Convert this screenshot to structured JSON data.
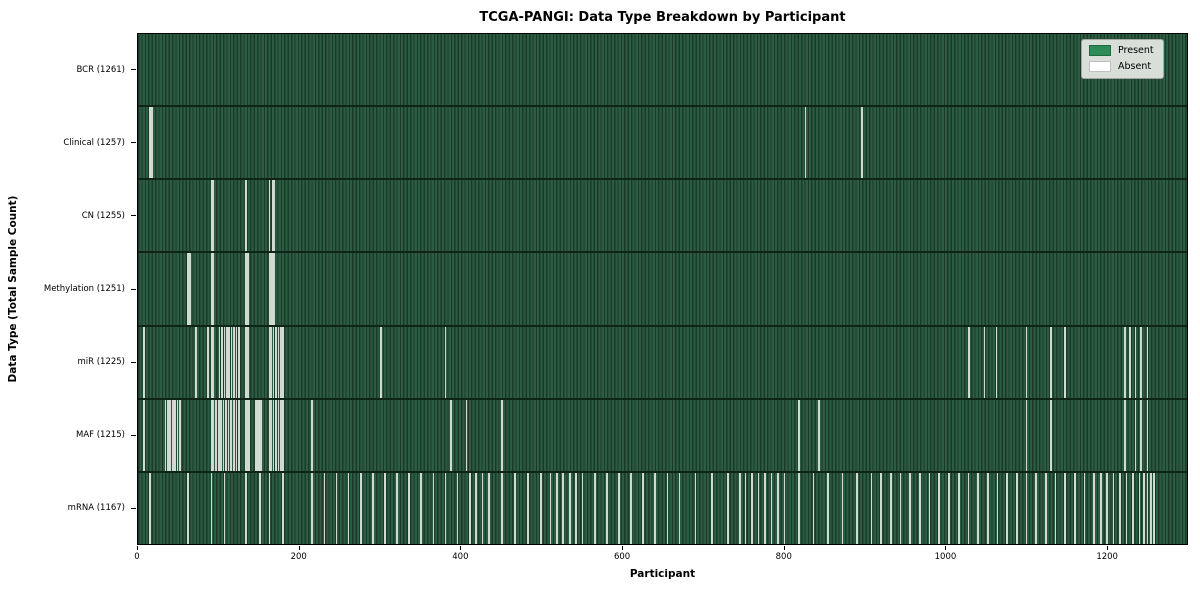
{
  "chart_data": {
    "type": "heatmap",
    "title": "TCGA-PANGI: Data Type Breakdown by Participant",
    "xlabel": "Participant",
    "ylabel": "Data Type (Total Sample Count)",
    "x_ticks": [
      0,
      200,
      400,
      600,
      800,
      1000,
      1200
    ],
    "xlim": [
      0,
      1300
    ],
    "n_participants": 1261,
    "present_color": "#2e8b57",
    "absent_color": "#ffffff",
    "legend": [
      {
        "label": "Present",
        "color": "#2e8b57"
      },
      {
        "label": "Absent",
        "color": "#ffffff"
      }
    ],
    "rows": [
      {
        "label": "BCR",
        "total": 1261,
        "tick_label": "BCR (1261)",
        "absent": []
      },
      {
        "label": "Clinical",
        "total": 1257,
        "tick_label": "Clinical (1257)",
        "absent": [
          14,
          16,
          826,
          896
        ]
      },
      {
        "label": "CN",
        "total": 1255,
        "tick_label": "CN (1255)",
        "absent": [
          90,
          92,
          133,
          162,
          166,
          168
        ]
      },
      {
        "label": "Methylation",
        "total": 1251,
        "tick_label": "Methylation (1251)",
        "absent": [
          61,
          63,
          90,
          92,
          133,
          135,
          162,
          164,
          166,
          168
        ]
      },
      {
        "label": "miR",
        "total": 1225,
        "tick_label": "miR (1225)",
        "absent": [
          6,
          71,
          86,
          90,
          92,
          100,
          103,
          106,
          109,
          112,
          115,
          118,
          121,
          124,
          133,
          135,
          162,
          164,
          167,
          170,
          173,
          176,
          179,
          300,
          380,
          1029,
          1048,
          1063,
          1100,
          1130,
          1148,
          1222,
          1228,
          1235,
          1242,
          1250
        ]
      },
      {
        "label": "MAF",
        "total": 1215,
        "tick_label": "MAF (1215)",
        "absent": [
          6,
          33,
          36,
          39,
          42,
          45,
          48,
          51,
          90,
          92,
          96,
          99,
          102,
          105,
          108,
          111,
          114,
          118,
          121,
          124,
          133,
          135,
          137,
          145,
          147,
          149,
          151,
          162,
          164,
          167,
          170,
          173,
          176,
          179,
          215,
          387,
          406,
          450,
          818,
          843,
          1100,
          1130,
          1222,
          1235,
          1242,
          1250
        ]
      },
      {
        "label": "mRNA",
        "total": 1167,
        "tick_label": "mRNA (1167)",
        "absent": [
          14,
          61,
          90,
          106,
          133,
          150,
          162,
          179,
          215,
          230,
          245,
          260,
          275,
          290,
          305,
          320,
          335,
          350,
          365,
          380,
          395,
          410,
          418,
          426,
          434,
          450,
          466,
          482,
          498,
          510,
          518,
          526,
          534,
          542,
          550,
          565,
          580,
          595,
          610,
          625,
          640,
          655,
          670,
          690,
          710,
          730,
          745,
          752,
          760,
          768,
          776,
          784,
          792,
          800,
          818,
          836,
          854,
          872,
          890,
          908,
          920,
          932,
          944,
          956,
          968,
          980,
          992,
          1004,
          1016,
          1028,
          1040,
          1052,
          1064,
          1076,
          1088,
          1100,
          1112,
          1124,
          1136,
          1148,
          1160,
          1172,
          1184,
          1192,
          1200,
          1208,
          1216,
          1224,
          1232,
          1240,
          1246,
          1250,
          1254,
          1258
        ]
      }
    ]
  }
}
